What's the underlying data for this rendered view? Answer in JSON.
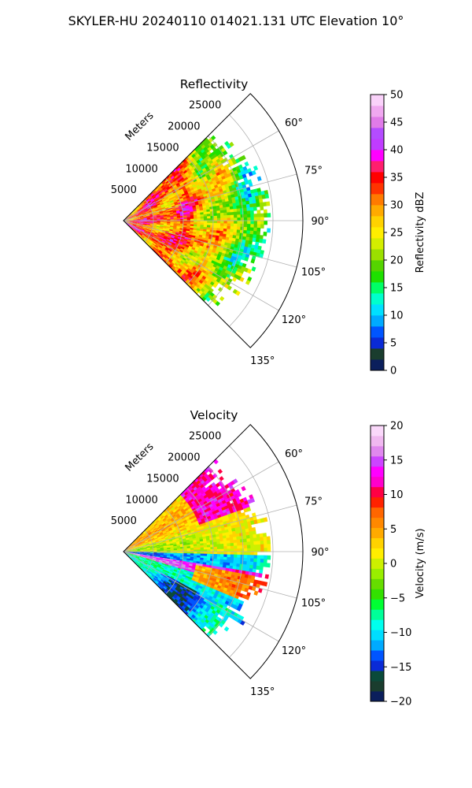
{
  "figure": {
    "title": "SKYLER-HU  20240110  014021.131 UTC Elevation 10°"
  },
  "chart_data": [
    {
      "type": "heatmap",
      "title": "Reflectivity",
      "projection": "polar sector",
      "radial_label": "Meters",
      "radial_ticks": [
        5000,
        10000,
        15000,
        20000,
        25000
      ],
      "radial_ticklabels": [
        "5000",
        "10000",
        "15000",
        "20000",
        "25000"
      ],
      "rlim": [
        0,
        30000
      ],
      "azimuth_range_deg": [
        45,
        135
      ],
      "azimuth_ticks": [
        60,
        75,
        90,
        105,
        120,
        135
      ],
      "azimuth_ticklabels": [
        "60°",
        "75°",
        "90°",
        "105°",
        "120°",
        "135°"
      ],
      "grid": true,
      "colorbar": {
        "label": "Reflectivity dBZ",
        "range": [
          0,
          50
        ],
        "ticks": [
          0,
          5,
          10,
          15,
          20,
          25,
          30,
          35,
          40,
          45,
          50
        ],
        "ticklabels": [
          "0",
          "5",
          "10",
          "15",
          "20",
          "25",
          "30",
          "35",
          "40",
          "45",
          "50"
        ],
        "colors": [
          "#0b1f5c",
          "#1a3d2e",
          "#0a2ad6",
          "#0055ff",
          "#00aaff",
          "#00e0ff",
          "#00ffcc",
          "#00ff66",
          "#1ee000",
          "#55d400",
          "#9be000",
          "#d4ee00",
          "#ffee00",
          "#ffd200",
          "#ffaa00",
          "#ff7a00",
          "#ff3300",
          "#ff0000",
          "#ff1e6e",
          "#ff00ff",
          "#c03cff",
          "#b44cff",
          "#e07be8",
          "#f0a8f0",
          "#fad2fa"
        ]
      }
    },
    {
      "type": "heatmap",
      "title": "Velocity",
      "projection": "polar sector",
      "radial_label": "Meters",
      "radial_ticks": [
        5000,
        10000,
        15000,
        20000,
        25000
      ],
      "radial_ticklabels": [
        "5000",
        "10000",
        "15000",
        "20000",
        "25000"
      ],
      "rlim": [
        0,
        30000
      ],
      "azimuth_range_deg": [
        45,
        135
      ],
      "azimuth_ticks": [
        60,
        75,
        90,
        105,
        120,
        135
      ],
      "azimuth_ticklabels": [
        "60°",
        "75°",
        "90°",
        "105°",
        "120°",
        "135°"
      ],
      "grid": true,
      "colorbar": {
        "label": "Velocity (m/s)",
        "range": [
          -20,
          20
        ],
        "ticks": [
          -20,
          -15,
          -10,
          -5,
          0,
          5,
          10,
          15,
          20
        ],
        "ticklabels": [
          "−20",
          "−15",
          "−10",
          "−5",
          "0",
          "5",
          "10",
          "15",
          "20"
        ],
        "colors": [
          "#0b1f5c",
          "#1a3d2e",
          "#0a4a3a",
          "#0a2ad6",
          "#0055ff",
          "#00aaff",
          "#00ddff",
          "#00ffee",
          "#00ff99",
          "#00ff33",
          "#33e000",
          "#66dd00",
          "#99ee00",
          "#ccf000",
          "#ffee00",
          "#ffd200",
          "#ffaa00",
          "#ff8800",
          "#ff6600",
          "#ff2200",
          "#ff0044",
          "#ff00cc",
          "#ff00ff",
          "#cc44ff",
          "#e088ee",
          "#f0b8f0",
          "#fad8fa"
        ]
      }
    }
  ]
}
